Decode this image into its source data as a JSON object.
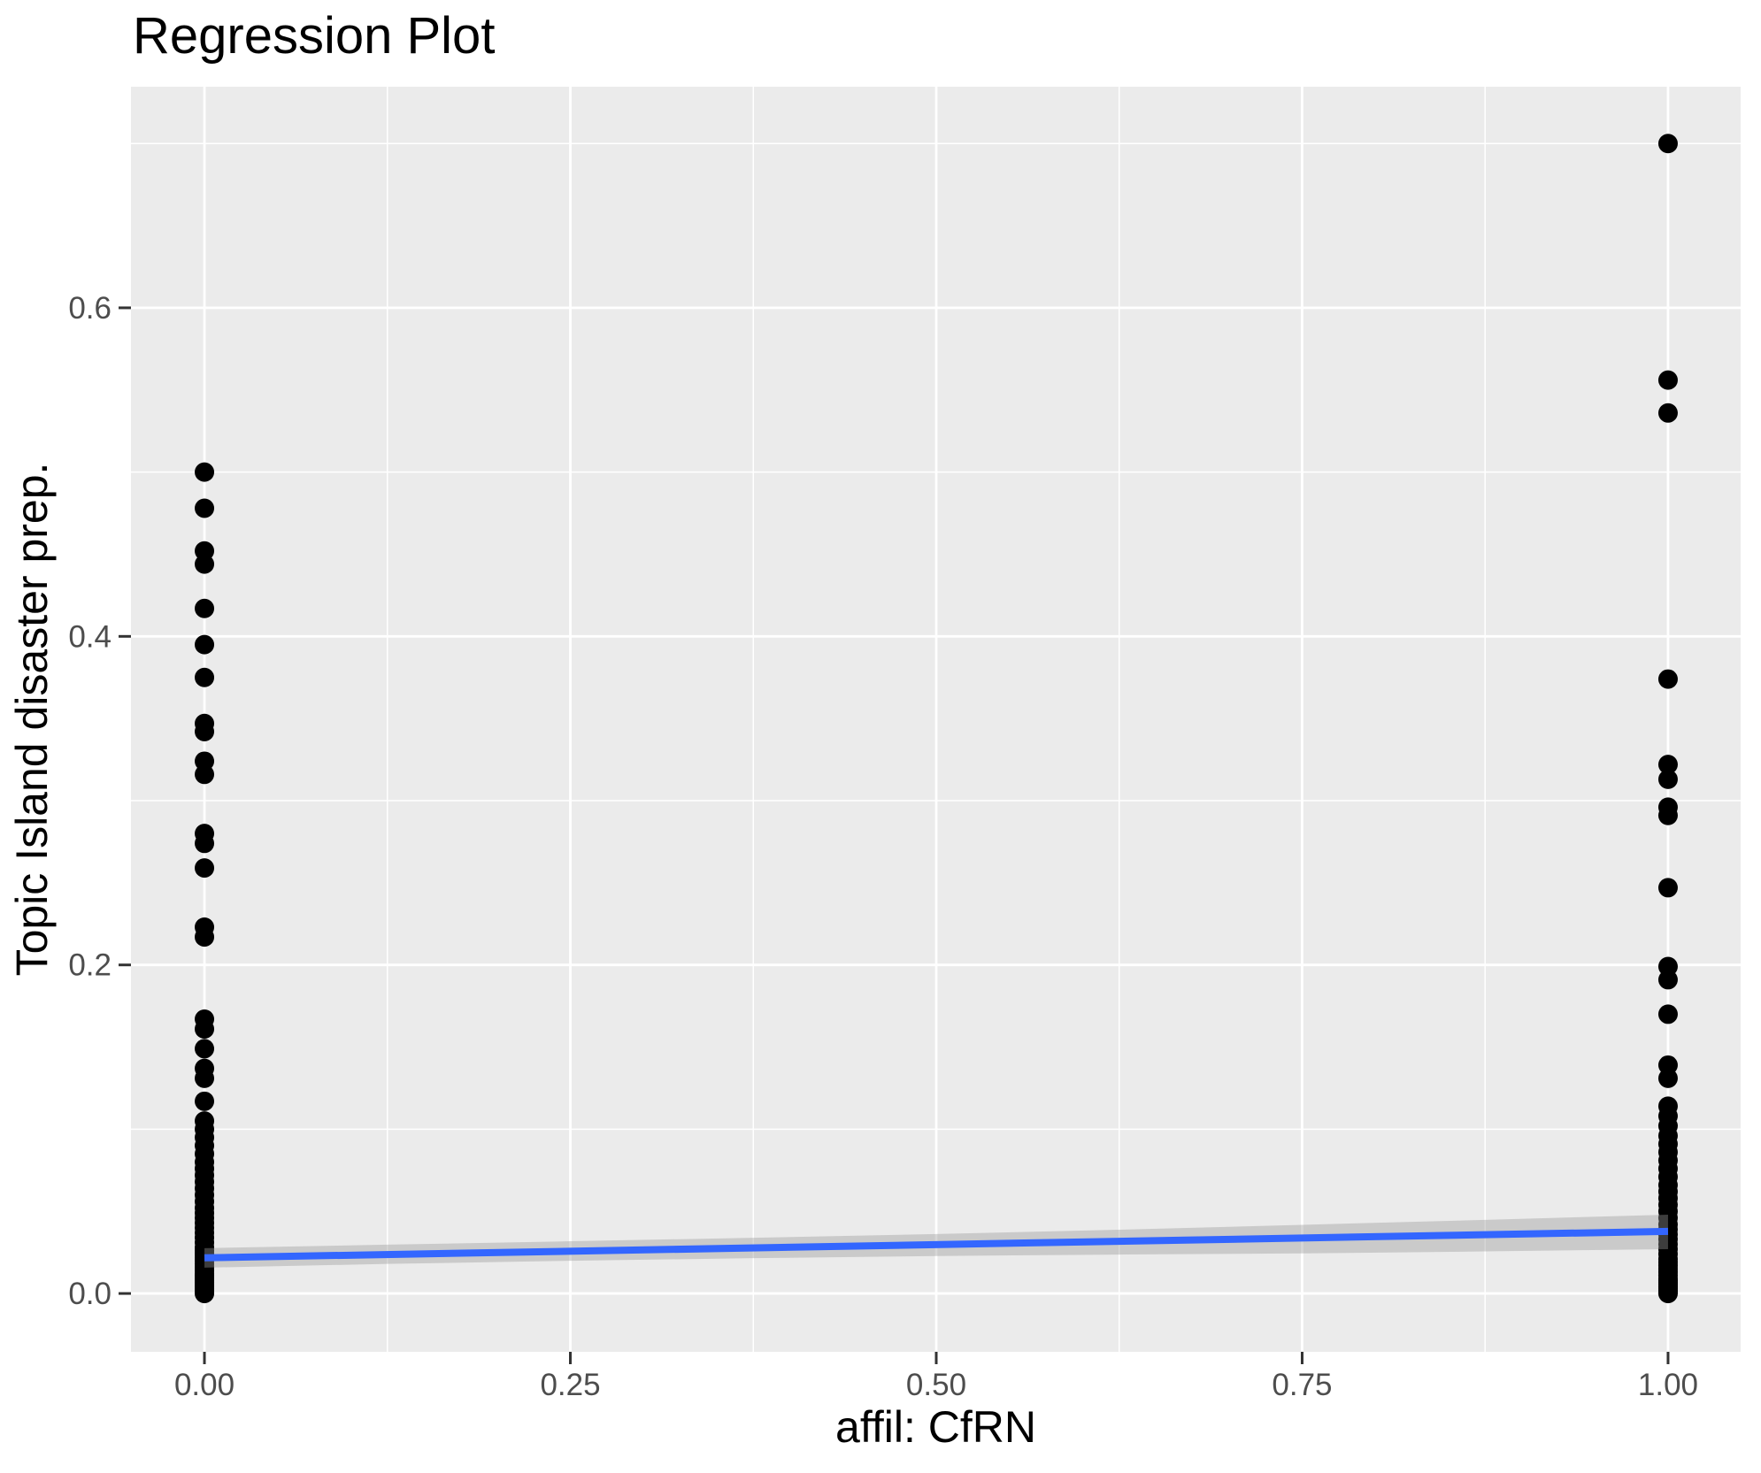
{
  "chart_data": {
    "type": "scatter",
    "title": "Regression Plot",
    "xlabel": "affil: CfRN",
    "ylabel": "Topic Island disaster prep.",
    "xlim": [
      -0.0502,
      1.0496
    ],
    "ylim": [
      -0.0355,
      0.7346
    ],
    "grid": true,
    "legend": false,
    "x_ticks": {
      "values": [
        0,
        0.25,
        0.5,
        0.75,
        1
      ],
      "labels": [
        "0.00",
        "0.25",
        "0.50",
        "0.75",
        "1.00"
      ]
    },
    "y_ticks": {
      "values": [
        0,
        0.2,
        0.4,
        0.6
      ],
      "labels": [
        "0.0",
        "0.2",
        "0.4",
        "0.6"
      ]
    },
    "x_minor": [
      0.125,
      0.375,
      0.625,
      0.875
    ],
    "y_minor": [
      0.1,
      0.3,
      0.5,
      0.7
    ],
    "series": [
      {
        "name": "affil CfRN = 0",
        "x": 0,
        "y": [
          0.5,
          0.478,
          0.452,
          0.444,
          0.417,
          0.395,
          0.375,
          0.347,
          0.342,
          0.324,
          0.316,
          0.28,
          0.274,
          0.259,
          0.223,
          0.217,
          0.167,
          0.161,
          0.149,
          0.137,
          0.131,
          0.117,
          0.105,
          0.1,
          0.095,
          0.09,
          0.085,
          0.08,
          0.076,
          0.072,
          0.068,
          0.064,
          0.06,
          0.056,
          0.052,
          0.049,
          0.046,
          0.043,
          0.04,
          0.037,
          0.034,
          0.031,
          0.028,
          0.026,
          0.024,
          0.022,
          0.02,
          0.018,
          0.016,
          0.014,
          0.012,
          0.011,
          0.01,
          0.009,
          0.008,
          0.007,
          0.006,
          0.005,
          0.004,
          0.003,
          0.002,
          0.001,
          0.0
        ]
      },
      {
        "name": "affil CfRN = 1",
        "x": 1,
        "y": [
          0.7,
          0.556,
          0.536,
          0.374,
          0.322,
          0.313,
          0.296,
          0.291,
          0.247,
          0.199,
          0.191,
          0.17,
          0.139,
          0.131,
          0.114,
          0.108,
          0.102,
          0.096,
          0.091,
          0.086,
          0.081,
          0.076,
          0.071,
          0.066,
          0.062,
          0.058,
          0.054,
          0.05,
          0.046,
          0.042,
          0.039,
          0.036,
          0.033,
          0.03,
          0.027,
          0.024,
          0.021,
          0.019,
          0.017,
          0.015,
          0.013,
          0.011,
          0.009,
          0.008,
          0.007,
          0.006,
          0.005,
          0.004,
          0.003,
          0.002,
          0.001,
          0.0
        ]
      }
    ],
    "regression_line": {
      "x": [
        0,
        1
      ],
      "y": [
        0.0217,
        0.0378
      ]
    },
    "confidence_band": {
      "x": [
        0,
        0.125,
        0.25,
        0.375,
        0.5,
        0.625,
        0.75,
        0.875,
        1
      ],
      "lo": [
        0.0157,
        0.018,
        0.0199,
        0.0215,
        0.0228,
        0.0237,
        0.0244,
        0.0256,
        0.027
      ],
      "hi": [
        0.0276,
        0.0297,
        0.0318,
        0.0339,
        0.0362,
        0.0388,
        0.0418,
        0.0448,
        0.048
      ]
    },
    "colors": {
      "panel_bg": "#EBEBEB",
      "grid": "#FFFFFF",
      "point": "#000000",
      "line": "#3366FF",
      "ribbon_fill": "#999999",
      "ribbon_alpha": 0.4,
      "tick_label": "#4D4D4D",
      "tick_mark": "#333333",
      "title": "#000000"
    }
  }
}
